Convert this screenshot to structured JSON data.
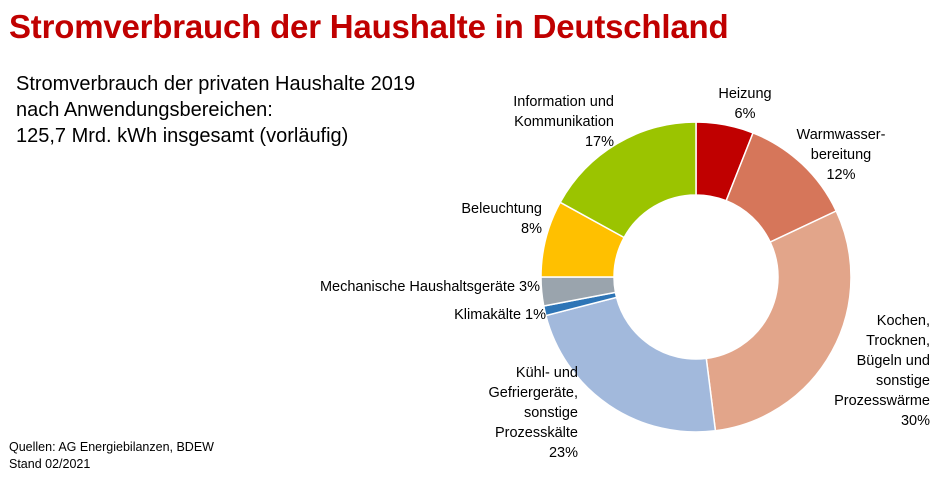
{
  "header": {
    "title": "Stromverbrauch der Haushalte in Deutschland"
  },
  "subtitle": {
    "line1": "Stromverbrauch der privaten Haushalte 2019",
    "line2": "nach Anwendungsbereichen:",
    "line3": "125,7 Mrd. kWh insgesamt (vorläufig)"
  },
  "footer": {
    "sources": "Quellen: AG Energiebilanzen, BDEW",
    "date": "Stand 02/2021"
  },
  "chart_data": {
    "type": "pie",
    "variant": "donut",
    "title": "Stromverbrauch der privaten Haushalte 2019 nach Anwendungsbereichen",
    "unit": "%",
    "total": "125,7 Mrd. kWh",
    "slices": [
      {
        "key": "heizung",
        "label_lines": [
          "Heizung"
        ],
        "value": 6,
        "value_label": "6%",
        "color": "#c00000"
      },
      {
        "key": "warmwasser",
        "label_lines": [
          "Warmwasser-",
          "bereitung"
        ],
        "value": 12,
        "value_label": "12%",
        "color": "#d6765a"
      },
      {
        "key": "kochen",
        "label_lines": [
          "Kochen,",
          "Trocknen,",
          "Bügeln und",
          "sonstige",
          "Prozesswärme"
        ],
        "value": 30,
        "value_label": "30%",
        "color": "#e2a58a"
      },
      {
        "key": "kuehl",
        "label_lines": [
          "Kühl- und",
          "Gefriergeräte,",
          "sonstige",
          "Prozesskälte"
        ],
        "value": 23,
        "value_label": "23%",
        "color": "#a2b9dc"
      },
      {
        "key": "klima",
        "label_lines": [
          "Klimakälte 1%"
        ],
        "value": 1,
        "value_label": "",
        "color": "#2e75b6"
      },
      {
        "key": "mechanisch",
        "label_lines": [
          "Mechanische Haushaltsgeräte 3%"
        ],
        "value": 3,
        "value_label": "",
        "color": "#9aa4ad"
      },
      {
        "key": "beleuchtung",
        "label_lines": [
          "Beleuchtung"
        ],
        "value": 8,
        "value_label": "8%",
        "color": "#ffc000"
      },
      {
        "key": "ikt",
        "label_lines": [
          "Information und",
          "Kommunikation"
        ],
        "value": 17,
        "value_label": "17%",
        "color": "#9bc400"
      }
    ]
  }
}
